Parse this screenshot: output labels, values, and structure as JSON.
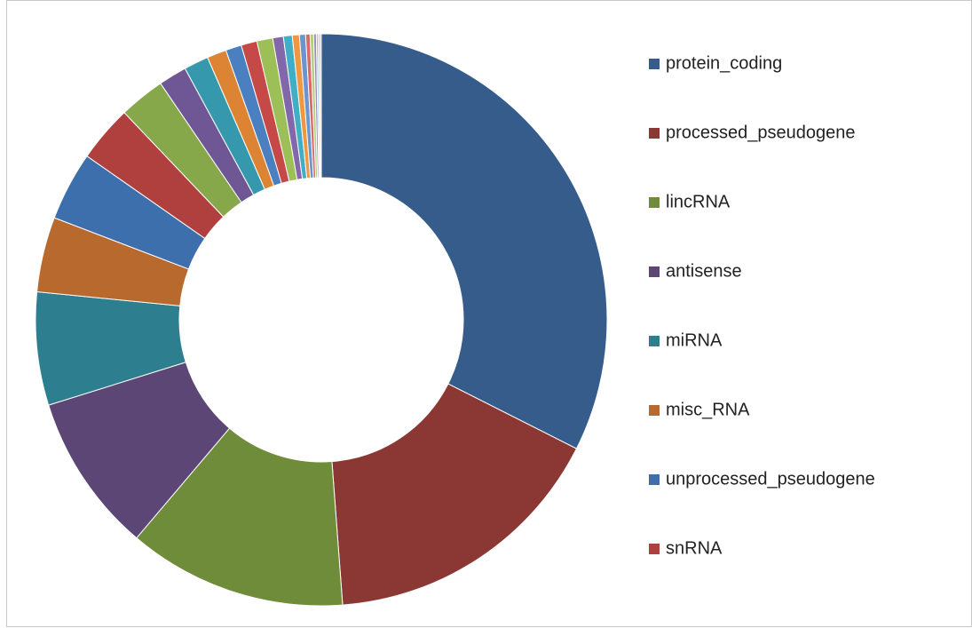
{
  "chart_data": {
    "type": "pie",
    "donut": true,
    "categories": [
      "protein_coding",
      "processed_pseudogene",
      "lincRNA",
      "antisense",
      "miRNA",
      "misc_RNA",
      "unprocessed_pseudogene",
      "snRNA",
      null,
      null,
      null,
      null,
      null,
      null,
      null,
      null,
      null,
      null,
      null,
      null,
      null,
      null,
      null,
      null,
      null
    ],
    "values": [
      32.5,
      16.4,
      12.4,
      9.0,
      6.4,
      4.25,
      3.9,
      3.2,
      2.6,
      1.6,
      1.4,
      1.1,
      0.9,
      0.9,
      0.9,
      0.6,
      0.5,
      0.4,
      0.35,
      0.25,
      0.2,
      0.15,
      0.1,
      0.1,
      0.08
    ],
    "colors": [
      "#355c8b",
      "#8b3835",
      "#6e8c3a",
      "#5b4676",
      "#2d7f8f",
      "#b8692d",
      "#3e6fad",
      "#b0403d",
      "#86a84a",
      "#6f5694",
      "#3598ad",
      "#dc8434",
      "#4a7fc0",
      "#c54a47",
      "#9cbf58",
      "#8268ab",
      "#40aec4",
      "#f0973f",
      "#6b95cf",
      "#d86966",
      "#b3cf80",
      "#9d88c0",
      "#7cc4d6",
      "#f5b27a",
      "#a9a9a9"
    ],
    "legend": "right"
  }
}
